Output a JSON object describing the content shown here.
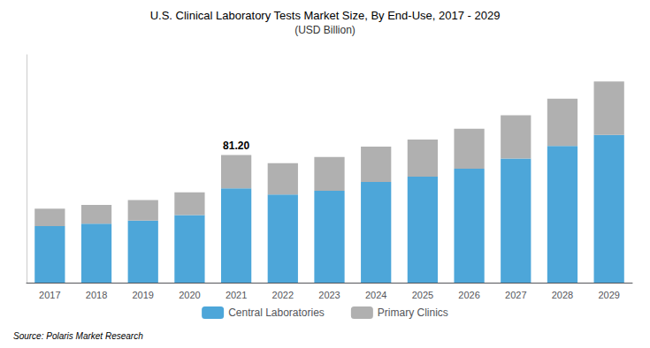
{
  "chart_data": {
    "type": "bar",
    "title": "U.S. Clinical Laboratory Tests Market Size, By End-Use, 2017 - 2029",
    "subtitle": "(USD Billion)",
    "source": "Source: Polaris Market Research",
    "categories": [
      "2017",
      "2018",
      "2019",
      "2020",
      "2021",
      "2022",
      "2023",
      "2024",
      "2025",
      "2026",
      "2027",
      "2028",
      "2029"
    ],
    "series": [
      {
        "name": "Central Laboratories",
        "color": "#4da6d9",
        "values": [
          36.0,
          37.5,
          39.5,
          43.0,
          60.0,
          56.0,
          58.5,
          64.0,
          67.5,
          72.5,
          79.0,
          87.0,
          94.0
        ]
      },
      {
        "name": "Primary Clinics",
        "color": "#b0b0b0",
        "values": [
          11.0,
          12.0,
          13.0,
          14.5,
          21.2,
          20.0,
          21.5,
          22.5,
          23.5,
          25.5,
          27.5,
          30.0,
          34.0
        ]
      }
    ],
    "annotations": [
      {
        "text": "81.20",
        "category": "2021"
      }
    ],
    "stacked": true,
    "ylim": [
      0,
      145
    ],
    "grid": false,
    "legend": "bottom",
    "tick_labels": "x"
  }
}
